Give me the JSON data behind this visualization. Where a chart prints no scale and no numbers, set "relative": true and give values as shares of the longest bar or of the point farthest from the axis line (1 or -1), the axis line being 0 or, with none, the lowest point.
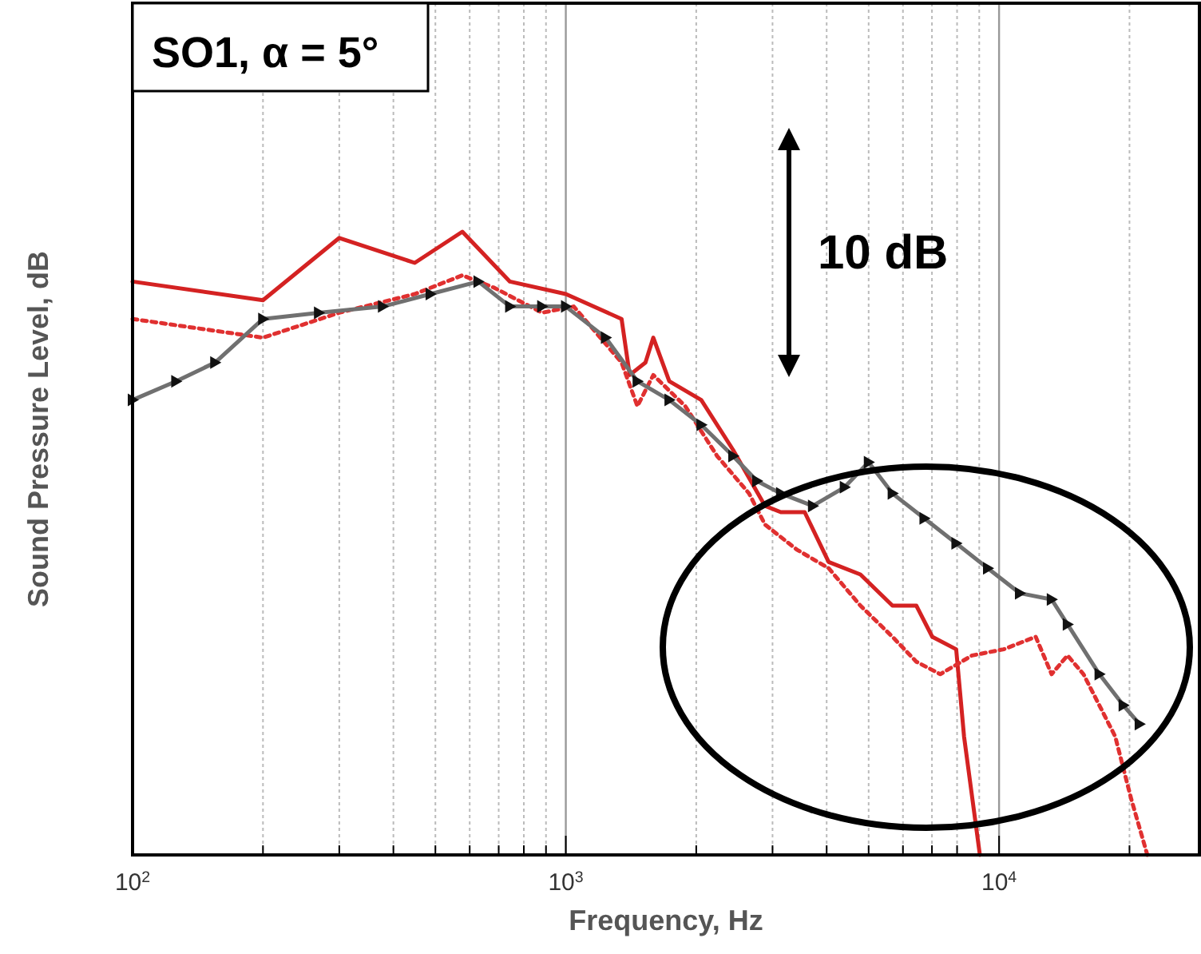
{
  "chart_data": {
    "type": "line",
    "relative": true,
    "xlabel": "Frequency, Hz",
    "ylabel": "Sound Pressure Level, dB",
    "log": "x",
    "grid": "x",
    "xlim": [
      100,
      29000
    ],
    "xticks": [
      {
        "value": 100,
        "label": "10$^{2}$"
      },
      {
        "value": 200,
        "label": null
      },
      {
        "value": 300,
        "label": null
      },
      {
        "value": 400,
        "label": null
      },
      {
        "value": 500,
        "label": null
      },
      {
        "value": 600,
        "label": null
      },
      {
        "value": 700,
        "label": null
      },
      {
        "value": 800,
        "label": null
      },
      {
        "value": 900,
        "label": null
      },
      {
        "value": 1000,
        "label": "10$^{3}$"
      },
      {
        "value": 2000,
        "label": null
      },
      {
        "value": 3000,
        "label": null
      },
      {
        "value": 4000,
        "label": null
      },
      {
        "value": 5000,
        "label": null
      },
      {
        "value": 6000,
        "label": null
      },
      {
        "value": 7000,
        "label": null
      },
      {
        "value": 8000,
        "label": null
      },
      {
        "value": 9000,
        "label": null
      },
      {
        "value": 10000,
        "label": "10$^{4}$"
      },
      {
        "value": 20000,
        "label": null
      }
    ],
    "annotations": [
      "SO1, α = 5°",
      "10 dB"
    ],
    "series": [
      {
        "color": "#d42222",
        "line_style": "solid",
        "marker": "none",
        "x": [
          100,
          200,
          300,
          448,
          577,
          743,
          1000,
          1345,
          1404,
          1527,
          1592,
          1733,
          2054,
          2432,
          2883,
          3135,
          3559,
          4043,
          4786,
          5675,
          6442,
          7012,
          7962,
          8302,
          9030
        ],
        "values": [
          0.92,
          0.89,
          0.99,
          0.95,
          1,
          0.92,
          0.9,
          0.86,
          0.77,
          0.79,
          0.83,
          0.76,
          0.73,
          0.65,
          0.56,
          0.55,
          0.55,
          0.47,
          0.45,
          0.4,
          0.4,
          0.35,
          0.33,
          0.19,
          0
        ]
      },
      {
        "color": "#e03030",
        "line_style": "dotted",
        "marker": "none",
        "x": [
          100,
          200,
          300,
          448,
          577,
          684,
          881,
          1043,
          1345,
          1463,
          1592,
          1887,
          2235,
          2648,
          2883,
          3412,
          4043,
          4786,
          5675,
          6442,
          7316,
          8660,
          10250,
          12150,
          13220,
          14390,
          15660,
          17040,
          18540,
          20180,
          21990
        ],
        "values": [
          0.86,
          0.83,
          0.87,
          0.9,
          0.93,
          0.91,
          0.87,
          0.88,
          0.79,
          0.72,
          0.77,
          0.72,
          0.64,
          0.58,
          0.53,
          0.49,
          0.46,
          0.4,
          0.35,
          0.31,
          0.29,
          0.32,
          0.33,
          0.35,
          0.29,
          0.32,
          0.29,
          0.24,
          0.19,
          0.09,
          0
        ]
      },
      {
        "color": "#707070",
        "line_style": "solid",
        "marker": "triangle",
        "x": [
          100,
          126,
          155,
          200,
          269,
          378,
          487,
          628,
          743,
          881,
          1000,
          1236,
          1463,
          1733,
          2054,
          2432,
          2762,
          3135,
          3715,
          4399,
          4999,
          5675,
          6720,
          7962,
          9419,
          11160,
          13220,
          14390,
          17040,
          19360,
          21090
        ],
        "values": [
          0.73,
          0.76,
          0.79,
          0.86,
          0.87,
          0.88,
          0.9,
          0.92,
          0.88,
          0.88,
          0.88,
          0.83,
          0.76,
          0.73,
          0.69,
          0.64,
          0.6,
          0.58,
          0.56,
          0.59,
          0.63,
          0.58,
          0.54,
          0.5,
          0.46,
          0.42,
          0.41,
          0.37,
          0.29,
          0.24,
          0.21
        ]
      }
    ]
  }
}
